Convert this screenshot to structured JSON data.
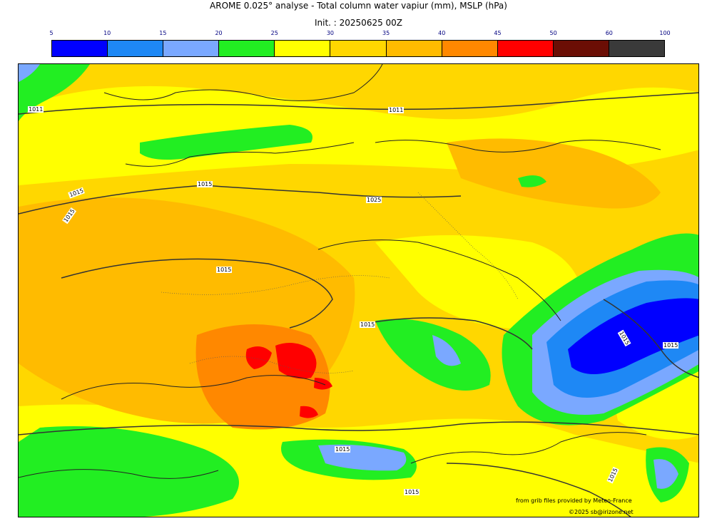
{
  "header": {
    "title": "AROME 0.025° analyse - Total column water vapiur (mm), MSLP (hPa)",
    "init": "Init. : 20250625 00Z"
  },
  "colorbar": {
    "ticks": [
      "5",
      "10",
      "15",
      "20",
      "25",
      "30",
      "35",
      "40",
      "45",
      "50",
      "60",
      "100"
    ],
    "colors": [
      "#0000ff",
      "#1e88f5",
      "#7aa8ff",
      "#22ee22",
      "#ffff00",
      "#ffd700",
      "#ffbb00",
      "#ff8800",
      "#ff0000",
      "#6b0e05",
      "#3a3a3a"
    ]
  },
  "map": {
    "isobar_labels": {
      "l1": "1011",
      "l2": "1011",
      "l3": "1015",
      "l4": "1015",
      "l5": "1015",
      "l6": "1025",
      "l7": "1015",
      "l8": "1015",
      "l9": "1015",
      "l10": "1015",
      "l11": "1015",
      "l12": "1015",
      "l13": "1015"
    },
    "credits": {
      "source": "from grib files provided by Meteo-France",
      "copyright": "©2025 sb@irizone.net"
    }
  }
}
